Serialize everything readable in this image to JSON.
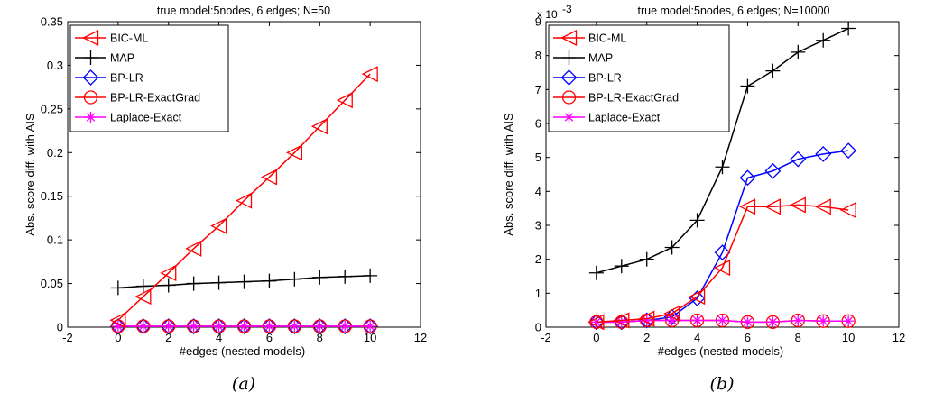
{
  "colors": {
    "BIC-ML": "#ff0000",
    "MAP": "#000000",
    "BP-LR": "#0000ff",
    "BP-LR-ExactGrad": "#ff0000",
    "Laplace-Exact": "#ff00ff"
  },
  "chart_data": [
    {
      "id": "a",
      "type": "line",
      "title": "true model:5nodes, 6 edges; N=50",
      "xlabel": "#edges (nested models)",
      "ylabel": "Abs. score diff. with AIS",
      "caption": "(a)",
      "xlim": [
        -2,
        12
      ],
      "ylim": [
        0,
        0.35
      ],
      "xticks": [
        -2,
        0,
        2,
        4,
        6,
        8,
        10,
        12
      ],
      "yticks": [
        0,
        0.05,
        0.1,
        0.15,
        0.2,
        0.25,
        0.3,
        0.35
      ],
      "ytick_labels": [
        "0",
        "0.05",
        "0.1",
        "0.15",
        "0.2",
        "0.25",
        "0.3",
        "0.35"
      ],
      "exponent_label": "",
      "legend_position": "top-left",
      "x": [
        0,
        1,
        2,
        3,
        4,
        5,
        6,
        7,
        8,
        9,
        10
      ],
      "series": [
        {
          "name": "BIC-ML",
          "marker": "triangle-left",
          "values": [
            0.008,
            0.035,
            0.062,
            0.09,
            0.116,
            0.145,
            0.172,
            0.2,
            0.23,
            0.26,
            0.29
          ]
        },
        {
          "name": "MAP",
          "marker": "plus",
          "values": [
            0.045,
            0.047,
            0.048,
            0.05,
            0.051,
            0.052,
            0.053,
            0.055,
            0.057,
            0.058,
            0.059
          ]
        },
        {
          "name": "BP-LR",
          "marker": "diamond",
          "values": [
            0.001,
            0.001,
            0.001,
            0.001,
            0.001,
            0.001,
            0.001,
            0.001,
            0.001,
            0.001,
            0.001
          ]
        },
        {
          "name": "BP-LR-ExactGrad",
          "marker": "circle",
          "values": [
            0.001,
            0.001,
            0.001,
            0.001,
            0.001,
            0.001,
            0.001,
            0.001,
            0.001,
            0.001,
            0.001
          ]
        },
        {
          "name": "Laplace-Exact",
          "marker": "star",
          "values": [
            0.001,
            0.001,
            0.001,
            0.001,
            0.001,
            0.001,
            0.001,
            0.001,
            0.001,
            0.001,
            0.001
          ]
        }
      ]
    },
    {
      "id": "b",
      "type": "line",
      "title": "true model:5nodes, 6 edges; N=10000",
      "xlabel": "#edges (nested models)",
      "ylabel": "Abs. score diff. with AIS",
      "caption": "(b)",
      "xlim": [
        -2,
        12
      ],
      "ylim": [
        0,
        9
      ],
      "xticks": [
        -2,
        0,
        2,
        4,
        6,
        8,
        10,
        12
      ],
      "yticks": [
        0,
        1,
        2,
        3,
        4,
        5,
        6,
        7,
        8,
        9
      ],
      "ytick_labels": [
        "0",
        "1",
        "2",
        "3",
        "4",
        "5",
        "6",
        "7",
        "8",
        "9"
      ],
      "exponent_label": "x 10",
      "exponent_power": "-3",
      "legend_position": "top-left",
      "x": [
        0,
        1,
        2,
        3,
        4,
        5,
        6,
        7,
        8,
        9,
        10
      ],
      "series": [
        {
          "name": "BIC-ML",
          "marker": "triangle-left",
          "values": [
            0.15,
            0.2,
            0.25,
            0.4,
            0.9,
            1.75,
            3.55,
            3.55,
            3.6,
            3.55,
            3.45
          ]
        },
        {
          "name": "MAP",
          "marker": "plus",
          "values": [
            1.6,
            1.8,
            2.0,
            2.35,
            3.15,
            4.72,
            7.1,
            7.55,
            8.1,
            8.45,
            8.8
          ]
        },
        {
          "name": "BP-LR",
          "marker": "diamond",
          "values": [
            0.15,
            0.15,
            0.2,
            0.3,
            0.85,
            2.2,
            4.4,
            4.6,
            4.95,
            5.1,
            5.2
          ]
        },
        {
          "name": "BP-LR-ExactGrad",
          "marker": "circle",
          "values": [
            0.15,
            0.15,
            0.2,
            0.2,
            0.2,
            0.2,
            0.15,
            0.15,
            0.2,
            0.18,
            0.18
          ]
        },
        {
          "name": "Laplace-Exact",
          "marker": "star",
          "values": [
            0.15,
            0.15,
            0.2,
            0.2,
            0.2,
            0.2,
            0.15,
            0.15,
            0.2,
            0.18,
            0.18
          ]
        }
      ]
    }
  ]
}
